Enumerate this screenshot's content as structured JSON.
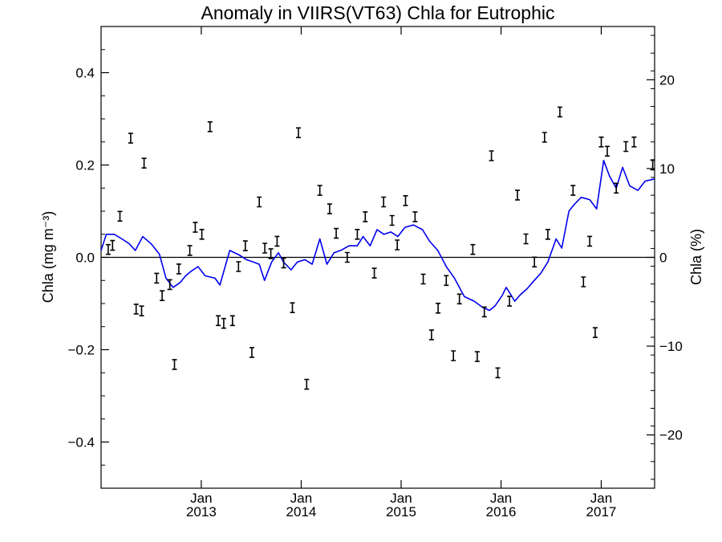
{
  "chart_data": {
    "type": "line",
    "title": "Anomaly in VIIRS(VT63) Chla for Eutrophic",
    "ylabel_left": "Chla (mg m⁻³)",
    "ylabel_right": "Chla (%)",
    "xlabel": "",
    "ylim": [
      -0.5,
      0.5
    ],
    "ylim_right": [
      -26,
      26
    ],
    "xlim": [
      "2012-01-01",
      "2017-07-15"
    ],
    "grid": false,
    "zero_line": true,
    "line_color": "#0000ee",
    "marker_color": "#000000",
    "x_ticks": [
      {
        "month": "Jan",
        "year": "2013",
        "date": "2013-01-01"
      },
      {
        "month": "Jan",
        "year": "2014",
        "date": "2014-01-01"
      },
      {
        "month": "Jan",
        "year": "2015",
        "date": "2015-01-01"
      },
      {
        "month": "Jan",
        "year": "2016",
        "date": "2016-01-01"
      },
      {
        "month": "Jan",
        "year": "2017",
        "date": "2017-01-01"
      }
    ],
    "y_ticks_left": [
      {
        "value": 0.4,
        "label": "0.4"
      },
      {
        "value": 0.2,
        "label": "0.2"
      },
      {
        "value": 0.0,
        "label": "0.0"
      },
      {
        "value": -0.2,
        "label": "−0.2"
      },
      {
        "value": -0.4,
        "label": "−0.4"
      }
    ],
    "y_ticks_right": [
      {
        "value": 20,
        "label": "20"
      },
      {
        "value": 10,
        "label": "10"
      },
      {
        "value": 0,
        "label": "0"
      },
      {
        "value": -10,
        "label": "−10"
      },
      {
        "value": -20,
        "label": "−20"
      }
    ],
    "series": [
      {
        "axis": "left",
        "style": "markers",
        "x": [
          "2012-01-27",
          "2012-02-12",
          "2012-03-10",
          "2012-04-18",
          "2012-05-08",
          "2012-05-28",
          "2012-06-06",
          "2012-07-22",
          "2012-08-11",
          "2012-09-08",
          "2012-09-25",
          "2012-10-11",
          "2012-11-20",
          "2012-12-10",
          "2013-01-03",
          "2013-02-02",
          "2013-03-04",
          "2013-03-24",
          "2013-04-25",
          "2013-05-17",
          "2013-06-11",
          "2013-07-05",
          "2013-08-01",
          "2013-08-21",
          "2013-09-12",
          "2013-10-05",
          "2013-10-29",
          "2013-11-30",
          "2013-12-22",
          "2014-01-21",
          "2014-03-10",
          "2014-04-15",
          "2014-05-09",
          "2014-06-18",
          "2014-07-25",
          "2014-08-23",
          "2014-09-25",
          "2014-10-29",
          "2014-11-29",
          "2014-12-18",
          "2015-01-17",
          "2015-02-21",
          "2015-03-23",
          "2015-04-22",
          "2015-05-16",
          "2015-06-15",
          "2015-07-11",
          "2015-08-02",
          "2015-09-20",
          "2015-10-06",
          "2015-11-01",
          "2015-11-27",
          "2015-12-20",
          "2016-02-01",
          "2016-03-01",
          "2016-04-01",
          "2016-05-02",
          "2016-06-08",
          "2016-06-20",
          "2016-08-03",
          "2016-09-20",
          "2016-10-28",
          "2016-11-20",
          "2016-12-10",
          "2017-01-01",
          "2017-01-23",
          "2017-02-25",
          "2017-04-01",
          "2017-05-01",
          "2017-07-08"
        ],
        "values": [
          0.017,
          0.026,
          0.089,
          0.258,
          -0.112,
          -0.116,
          0.204,
          -0.045,
          -0.083,
          -0.059,
          -0.232,
          -0.025,
          0.015,
          0.065,
          0.05,
          0.283,
          -0.137,
          -0.143,
          -0.137,
          -0.02,
          0.025,
          -0.206,
          0.12,
          0.02,
          0.008,
          0.035,
          -0.012,
          -0.109,
          0.27,
          -0.275,
          0.145,
          0.105,
          0.052,
          0.0,
          0.05,
          0.088,
          -0.034,
          0.12,
          0.08,
          0.027,
          0.123,
          0.088,
          -0.047,
          -0.168,
          -0.11,
          -0.05,
          -0.213,
          -0.09,
          0.017,
          -0.215,
          -0.118,
          0.22,
          -0.25,
          -0.095,
          0.135,
          0.04,
          -0.01,
          0.26,
          0.05,
          0.315,
          0.145,
          -0.053,
          0.035,
          -0.163,
          0.25,
          0.23,
          0.15,
          0.24,
          0.25,
          0.2
        ]
      },
      {
        "axis": "left",
        "style": "line",
        "x": [
          "2012-01-01",
          "2012-01-20",
          "2012-02-18",
          "2012-03-17",
          "2012-04-12",
          "2012-05-05",
          "2012-06-01",
          "2012-07-01",
          "2012-08-01",
          "2012-08-25",
          "2012-09-20",
          "2012-10-15",
          "2012-11-05",
          "2012-11-25",
          "2012-12-20",
          "2013-01-15",
          "2013-02-20",
          "2013-03-10",
          "2013-04-15",
          "2013-05-20",
          "2013-06-15",
          "2013-07-10",
          "2013-08-01",
          "2013-08-20",
          "2013-09-15",
          "2013-10-10",
          "2013-10-28",
          "2013-11-25",
          "2013-12-18",
          "2014-01-15",
          "2014-02-10",
          "2014-03-10",
          "2014-04-05",
          "2014-05-01",
          "2014-05-25",
          "2014-06-25",
          "2014-07-25",
          "2014-08-15",
          "2014-09-10",
          "2014-10-05",
          "2014-10-30",
          "2014-11-25",
          "2014-12-20",
          "2015-01-15",
          "2015-02-15",
          "2015-03-20",
          "2015-04-15",
          "2015-05-15",
          "2015-06-15",
          "2015-07-15",
          "2015-08-20",
          "2015-09-25",
          "2015-10-25",
          "2015-11-20",
          "2015-12-10",
          "2016-01-05",
          "2016-01-20",
          "2016-02-05",
          "2016-02-20",
          "2016-03-10",
          "2016-04-05",
          "2016-05-01",
          "2016-05-25",
          "2016-06-20",
          "2016-07-20",
          "2016-08-10",
          "2016-09-05",
          "2016-09-25",
          "2016-10-20",
          "2016-11-20",
          "2016-12-15",
          "2017-01-10",
          "2017-02-01",
          "2017-02-25",
          "2017-03-20",
          "2017-04-15",
          "2017-05-15",
          "2017-06-10",
          "2017-07-15"
        ],
        "values": [
          0.015,
          0.05,
          0.05,
          0.04,
          0.03,
          0.015,
          0.045,
          0.03,
          0.007,
          -0.045,
          -0.065,
          -0.055,
          -0.04,
          -0.03,
          -0.02,
          -0.04,
          -0.045,
          -0.06,
          0.015,
          0.005,
          -0.005,
          -0.01,
          -0.015,
          -0.05,
          -0.01,
          0.01,
          -0.01,
          -0.027,
          -0.01,
          -0.005,
          -0.015,
          0.04,
          -0.015,
          0.01,
          0.015,
          0.025,
          0.025,
          0.045,
          0.025,
          0.06,
          0.05,
          0.055,
          0.045,
          0.065,
          0.07,
          0.06,
          0.035,
          0.015,
          -0.02,
          -0.045,
          -0.085,
          -0.095,
          -0.108,
          -0.115,
          -0.105,
          -0.083,
          -0.065,
          -0.08,
          -0.095,
          -0.082,
          -0.068,
          -0.05,
          -0.035,
          -0.01,
          0.04,
          0.02,
          0.1,
          0.115,
          0.13,
          0.125,
          0.105,
          0.21,
          0.175,
          0.15,
          0.195,
          0.155,
          0.145,
          0.165,
          0.17
        ]
      }
    ]
  }
}
